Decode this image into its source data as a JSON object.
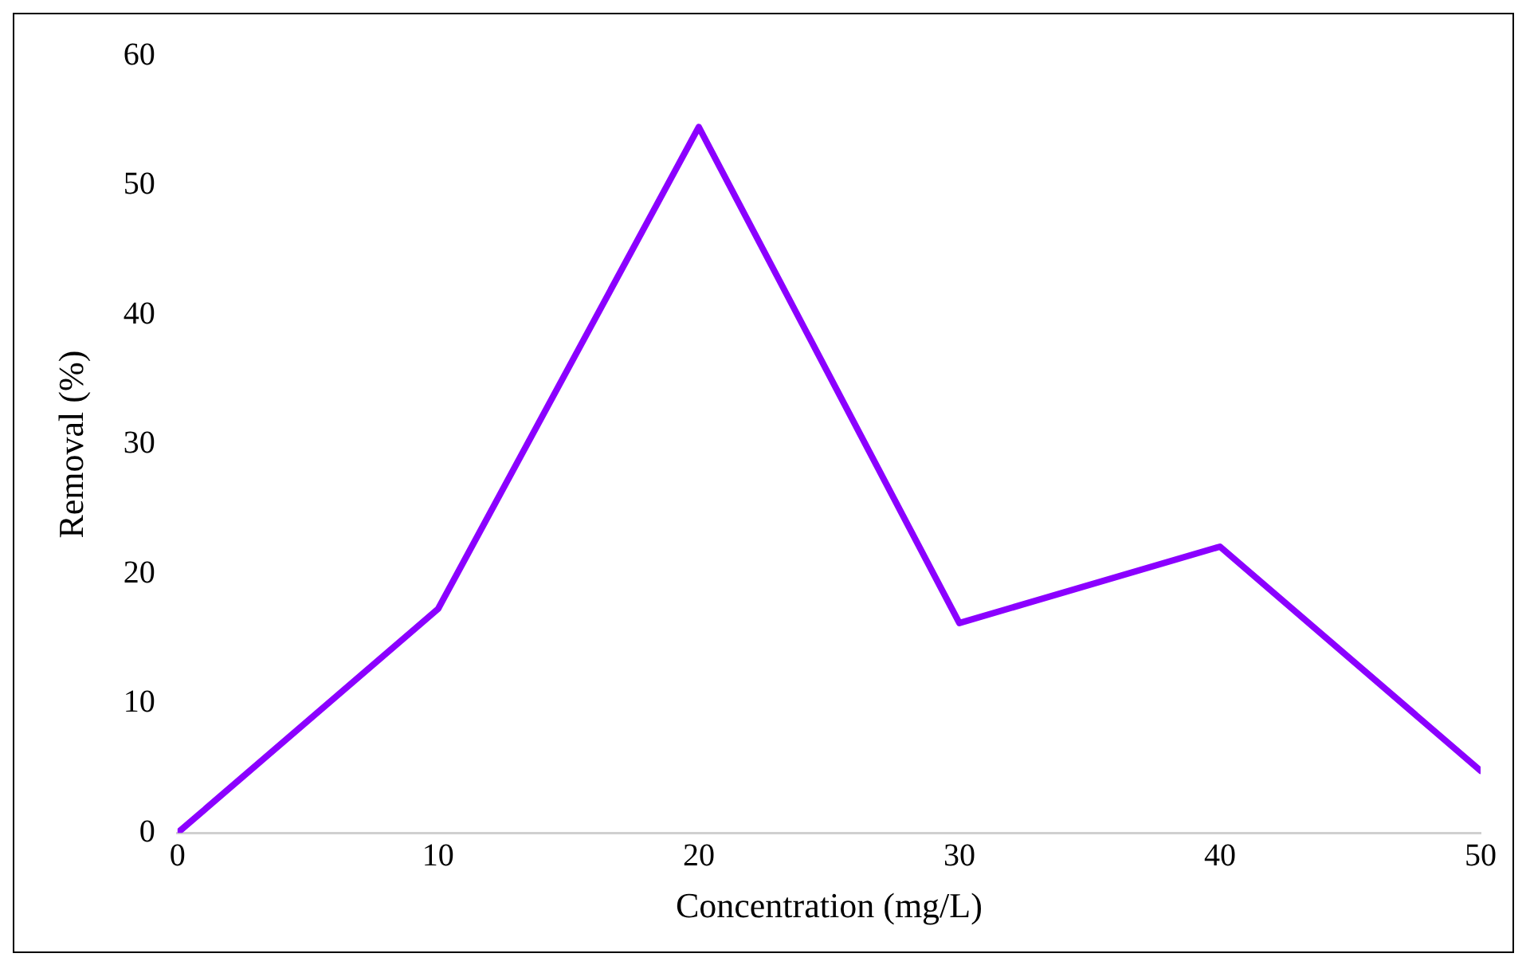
{
  "chart_data": {
    "type": "line",
    "xlabel": "Concentration (mg/L)",
    "ylabel": "Removal (%)",
    "x": [
      0,
      10,
      20,
      30,
      40,
      50
    ],
    "series": [
      {
        "color": "#8b00ff",
        "values": [
          0,
          17.3,
          54.5,
          16.2,
          22.1,
          4.8
        ]
      }
    ],
    "xlim": [
      0,
      50
    ],
    "xticks": [
      0,
      10,
      20,
      30,
      40,
      50
    ],
    "ylim": [
      0,
      60
    ],
    "yticks": [
      0,
      10,
      20,
      30,
      40,
      50,
      60
    ],
    "grid": false,
    "legend": false,
    "marker": "none",
    "line_style": "solid"
  }
}
